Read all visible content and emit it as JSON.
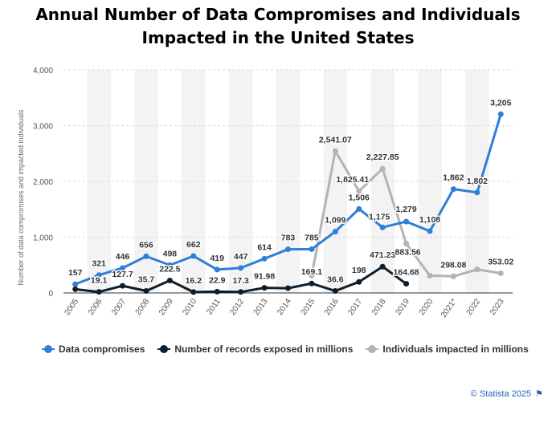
{
  "title": "Annual Number of Data Compromises and Individuals Impacted in the United States",
  "chart_data": {
    "type": "line",
    "title": "Annual Number of Data Compromises and Individuals Impacted in the United States",
    "xlabel": "",
    "ylabel": "Number of data compromises and impacted individuals",
    "ylim": [
      0,
      4000
    ],
    "yticks": [
      0,
      1000,
      2000,
      3000,
      4000
    ],
    "ytick_labels": [
      "0",
      "1,000",
      "2,000",
      "3,000",
      "4,000"
    ],
    "grid": true,
    "legend_position": "bottom",
    "categories": [
      "2005",
      "2006",
      "2007",
      "2008",
      "2009",
      "2010",
      "2011",
      "2012",
      "2013",
      "2014",
      "2015",
      "2016",
      "2017",
      "2018",
      "2019",
      "2020",
      "2021*",
      "2022",
      "2023"
    ],
    "series": [
      {
        "name": "Data compromises",
        "color": "#2f7ed8",
        "values": [
          157,
          321,
          446,
          656,
          498,
          662,
          419,
          447,
          614,
          783,
          785,
          1099,
          1506,
          1175,
          1279,
          1108,
          1862,
          1802,
          3205
        ],
        "labels": [
          "157",
          "321",
          "446",
          "656",
          "498",
          "662",
          "419",
          "447",
          "614",
          "783",
          "785",
          "1,099",
          "1,506",
          "1,175",
          "1,279",
          "1,108",
          "1,862",
          "1,802",
          "3,205"
        ]
      },
      {
        "name": "Number of records exposed in millions",
        "color": "#0d1f2d",
        "values": [
          66.9,
          19.1,
          127.7,
          35.7,
          222.5,
          16.2,
          22.9,
          17.3,
          91.98,
          85.6,
          169.1,
          36.6,
          198,
          471.23,
          164.68,
          null,
          null,
          null,
          null
        ],
        "labels": [
          null,
          "19.1",
          "127.7",
          "35.7",
          "222.5",
          "16.2",
          "22.9",
          "17.3",
          "91.98",
          null,
          "169.1",
          "36.6",
          "198",
          "471.23",
          "164.68",
          null,
          null,
          null,
          null
        ]
      },
      {
        "name": "Individuals impacted in millions",
        "color": "#b3b3b3",
        "values": [
          null,
          null,
          null,
          null,
          null,
          null,
          null,
          null,
          null,
          null,
          310,
          2541.07,
          1825.41,
          2227.85,
          883.56,
          310.12,
          298.08,
          422.14,
          353.02
        ],
        "labels": [
          null,
          null,
          null,
          null,
          null,
          null,
          null,
          null,
          null,
          null,
          null,
          "2,541.07",
          "1,825.41",
          "2,227.85",
          "883.56",
          null,
          "298.08",
          null,
          "353.02"
        ]
      }
    ]
  },
  "legend": {
    "items": [
      {
        "label": "Data compromises",
        "color": "#2f7ed8"
      },
      {
        "label": "Number of records exposed in millions",
        "color": "#0d1f2d"
      },
      {
        "label": "Individuals impacted in millions",
        "color": "#b3b3b3"
      }
    ]
  },
  "credit": "© Statista 2025"
}
